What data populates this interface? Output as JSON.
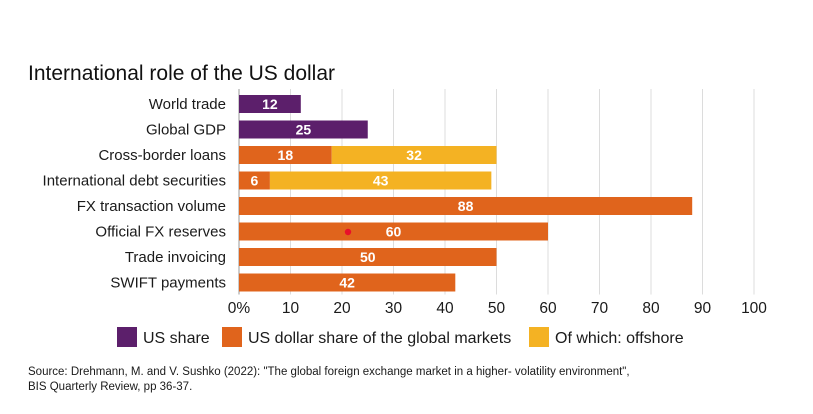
{
  "chart_data": {
    "type": "bar",
    "orientation": "horizontal",
    "stacked": true,
    "title": "International role of the US dollar",
    "categories": [
      "World trade",
      "Global GDP",
      "Cross-border loans",
      "International debt securities",
      "FX transaction volume",
      "Official FX reserves",
      "Trade invoicing",
      "SWIFT payments"
    ],
    "series": [
      {
        "name": "US share",
        "color": "#5c1f6b",
        "values": [
          12,
          25,
          null,
          null,
          null,
          null,
          null,
          null
        ]
      },
      {
        "name": "US dollar share of the global markets",
        "color": "#e0641c",
        "values": [
          null,
          null,
          18,
          6,
          88,
          60,
          50,
          42
        ]
      },
      {
        "name": "Of which: offshore",
        "color": "#f4b223",
        "values": [
          null,
          null,
          32,
          43,
          null,
          null,
          null,
          null
        ]
      }
    ],
    "xlim": [
      0,
      100
    ],
    "x_ticks": [
      "0%",
      "10",
      "20",
      "30",
      "40",
      "50",
      "60",
      "70",
      "80",
      "90",
      "100"
    ],
    "grid": "vertical",
    "legend_position": "bottom",
    "annotation_marker_color": "#e8102a"
  },
  "source": {
    "line1": "Source: Drehmann, M. and V. Sushko (2022): \"The global foreign exchange market in a higher- volatility environment\",",
    "line2": "BIS Quarterly Review, pp 36-37."
  }
}
